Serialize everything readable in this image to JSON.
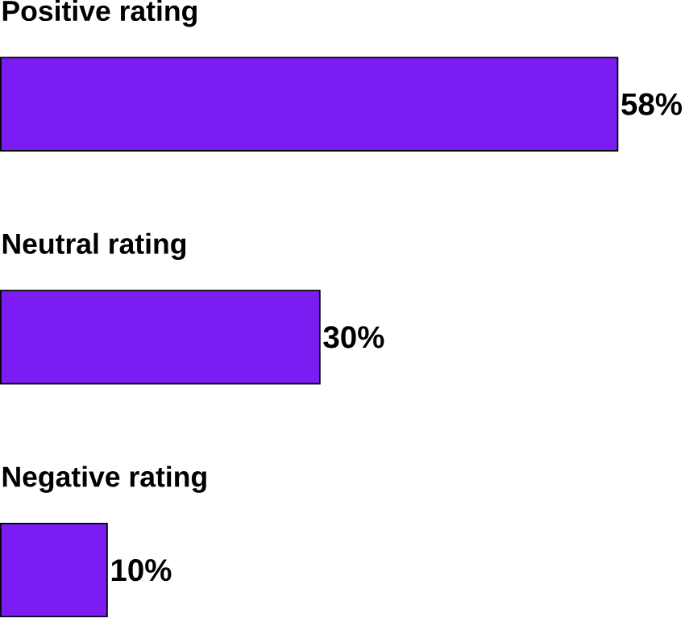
{
  "chart_data": {
    "type": "bar",
    "orientation": "horizontal",
    "categories": [
      "Positive rating",
      "Neutral rating",
      "Negative rating"
    ],
    "values": [
      58,
      30,
      10
    ],
    "value_labels": [
      "58%",
      "30%",
      "10%"
    ],
    "color": "#7a1cf2"
  }
}
